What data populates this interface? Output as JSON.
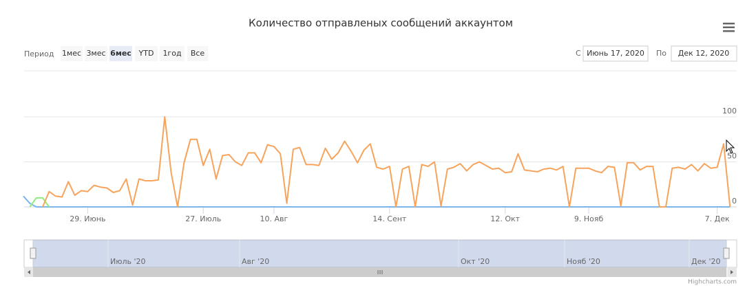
{
  "chart_data": {
    "type": "line",
    "title": "Количество отправленых сообщений аккаунтом",
    "categories": [
      null,
      null,
      null,
      null,
      null,
      null,
      null,
      null,
      null,
      null,
      "29. Июнь",
      null,
      null,
      null,
      null,
      null,
      null,
      null,
      null,
      null,
      null,
      null,
      null,
      null,
      null,
      null,
      null,
      null,
      "27. Июль",
      null,
      null,
      null,
      null,
      null,
      null,
      null,
      null,
      null,
      null,
      "10. Авг",
      null,
      null,
      null,
      null,
      null,
      null,
      null,
      null,
      null,
      null,
      null,
      null,
      null,
      null,
      null,
      null,
      null,
      "14. Сент",
      null,
      null,
      null,
      null,
      null,
      null,
      null,
      null,
      null,
      null,
      null,
      null,
      null,
      null,
      null,
      null,
      null,
      "12. Окт",
      null,
      null,
      null,
      null,
      null,
      null,
      null,
      null,
      null,
      null,
      null,
      null,
      "9. Нояб",
      null,
      null,
      null,
      null,
      null,
      null,
      null,
      null,
      null,
      null,
      null,
      null,
      null,
      null,
      null,
      null,
      null,
      null,
      null,
      "7. Дек",
      null,
      null
    ],
    "series": [
      {
        "color": "#7cb5ec",
        "values": [
          12,
          4,
          0,
          0,
          0,
          0,
          0,
          0,
          0,
          0,
          0,
          0,
          0,
          0,
          0,
          0,
          0,
          0,
          0,
          0,
          0,
          0,
          0,
          0,
          0,
          0,
          0,
          0,
          0,
          0,
          0,
          0,
          0,
          0,
          0,
          0,
          0,
          0,
          0,
          0,
          0,
          0,
          0,
          0,
          0,
          0,
          0,
          0,
          0,
          0,
          0,
          0,
          0,
          0,
          0,
          0,
          0,
          0,
          0,
          0,
          0,
          0,
          0,
          0,
          0,
          0,
          0,
          0,
          0,
          0,
          0,
          0,
          0,
          0,
          0,
          0,
          0,
          0,
          0,
          0,
          0,
          0,
          0,
          0,
          0,
          0,
          0,
          0,
          0,
          0,
          0,
          0,
          0,
          0,
          0,
          0,
          0,
          0,
          0,
          0,
          0,
          0,
          0,
          0,
          0,
          0,
          0,
          0,
          0,
          0,
          0
        ]
      },
      {
        "color": "#90ed7d",
        "values": [
          null,
          0,
          10,
          10,
          0,
          null,
          null,
          null,
          null,
          null,
          null,
          null,
          null,
          null,
          null,
          null,
          null,
          null,
          null,
          null,
          null,
          null,
          null,
          null,
          null,
          null,
          null,
          null,
          null,
          null,
          null,
          null,
          null,
          null,
          null,
          null,
          null,
          null,
          null,
          null,
          null,
          null,
          null,
          null,
          null,
          null,
          null,
          null,
          null,
          null,
          null,
          null,
          null,
          null,
          null,
          null,
          null,
          null,
          null,
          null,
          null,
          null,
          null,
          null,
          null,
          null,
          null,
          null,
          null,
          null,
          null,
          null,
          null,
          null,
          null,
          null,
          null,
          null,
          null,
          null,
          null,
          null,
          null,
          null,
          null,
          null,
          null,
          null,
          null,
          null,
          null,
          null,
          null,
          null,
          null,
          null,
          null,
          null,
          null,
          null,
          null,
          null,
          null,
          null,
          null,
          null,
          null,
          null,
          null,
          null,
          null
        ]
      },
      {
        "color": "#f7a35c",
        "values": [
          null,
          null,
          null,
          0,
          17,
          12,
          11,
          28,
          13,
          18,
          17,
          24,
          22,
          21,
          16,
          18,
          31,
          2,
          31,
          29,
          29,
          30,
          100,
          38,
          0,
          49,
          75,
          75,
          46,
          64,
          31,
          57,
          58,
          50,
          46,
          60,
          60,
          49,
          69,
          67,
          59,
          4,
          64,
          66,
          47,
          47,
          46,
          65,
          53,
          60,
          73,
          62,
          49,
          63,
          70,
          44,
          42,
          45,
          0,
          42,
          45,
          0,
          47,
          45,
          50,
          1,
          42,
          44,
          48,
          40,
          47,
          50,
          46,
          42,
          43,
          38,
          39,
          59,
          41,
          40,
          39,
          42,
          43,
          41,
          45,
          0,
          43,
          43,
          43,
          40,
          38,
          45,
          44,
          1,
          49,
          49,
          41,
          45,
          45,
          0,
          0,
          43,
          44,
          42,
          47,
          40,
          48,
          43,
          44,
          70,
          0
        ]
      }
    ],
    "ylim": [
      0,
      150
    ],
    "yticks": [
      0,
      50,
      100
    ],
    "grid": true
  },
  "range_selector": {
    "label": "Период",
    "buttons": [
      "1мес",
      "3мес",
      "6мес",
      "YTD",
      "1год",
      "Все"
    ],
    "selected": 2
  },
  "date_range": {
    "from_label": "С",
    "from": "Июнь 17, 2020",
    "to_label": "По",
    "to": "Дек 12, 2020"
  },
  "navigator": {
    "labels": [
      "Июль '20",
      "Авг '20",
      "Окт '20",
      "Нояб '20",
      "Дек '20"
    ]
  },
  "credits": "Highcharts.com"
}
